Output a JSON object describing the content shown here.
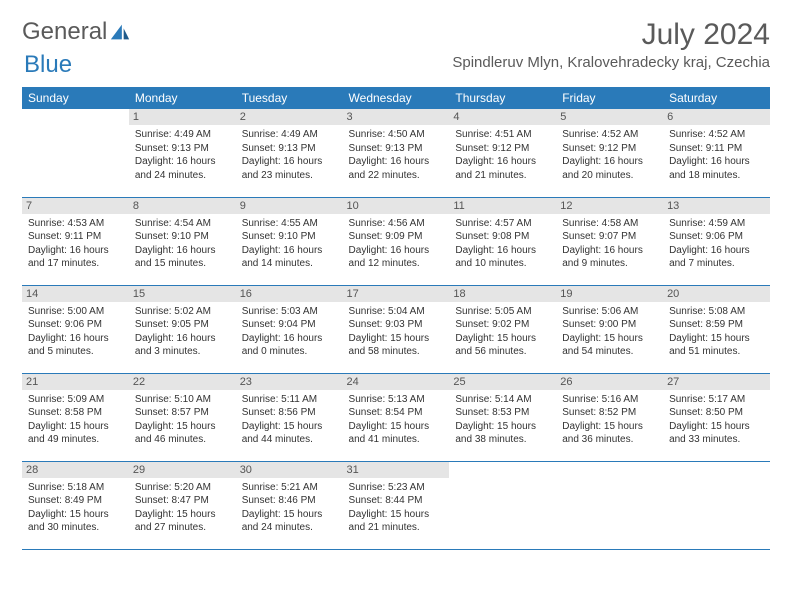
{
  "logo": {
    "text1": "General",
    "text2": "Blue"
  },
  "title": "July 2024",
  "location": "Spindleruv Mlyn, Kralovehradecky kraj, Czechia",
  "colors": {
    "brand": "#2a7ab9",
    "daynum_bg": "#e5e5e5",
    "text": "#333333",
    "muted": "#5a5a5a",
    "white": "#ffffff"
  },
  "weekdays": [
    "Sunday",
    "Monday",
    "Tuesday",
    "Wednesday",
    "Thursday",
    "Friday",
    "Saturday"
  ],
  "weeks": [
    [
      null,
      {
        "n": "1",
        "sr": "4:49 AM",
        "ss": "9:13 PM",
        "dl": "16 hours and 24 minutes."
      },
      {
        "n": "2",
        "sr": "4:49 AM",
        "ss": "9:13 PM",
        "dl": "16 hours and 23 minutes."
      },
      {
        "n": "3",
        "sr": "4:50 AM",
        "ss": "9:13 PM",
        "dl": "16 hours and 22 minutes."
      },
      {
        "n": "4",
        "sr": "4:51 AM",
        "ss": "9:12 PM",
        "dl": "16 hours and 21 minutes."
      },
      {
        "n": "5",
        "sr": "4:52 AM",
        "ss": "9:12 PM",
        "dl": "16 hours and 20 minutes."
      },
      {
        "n": "6",
        "sr": "4:52 AM",
        "ss": "9:11 PM",
        "dl": "16 hours and 18 minutes."
      }
    ],
    [
      {
        "n": "7",
        "sr": "4:53 AM",
        "ss": "9:11 PM",
        "dl": "16 hours and 17 minutes."
      },
      {
        "n": "8",
        "sr": "4:54 AM",
        "ss": "9:10 PM",
        "dl": "16 hours and 15 minutes."
      },
      {
        "n": "9",
        "sr": "4:55 AM",
        "ss": "9:10 PM",
        "dl": "16 hours and 14 minutes."
      },
      {
        "n": "10",
        "sr": "4:56 AM",
        "ss": "9:09 PM",
        "dl": "16 hours and 12 minutes."
      },
      {
        "n": "11",
        "sr": "4:57 AM",
        "ss": "9:08 PM",
        "dl": "16 hours and 10 minutes."
      },
      {
        "n": "12",
        "sr": "4:58 AM",
        "ss": "9:07 PM",
        "dl": "16 hours and 9 minutes."
      },
      {
        "n": "13",
        "sr": "4:59 AM",
        "ss": "9:06 PM",
        "dl": "16 hours and 7 minutes."
      }
    ],
    [
      {
        "n": "14",
        "sr": "5:00 AM",
        "ss": "9:06 PM",
        "dl": "16 hours and 5 minutes."
      },
      {
        "n": "15",
        "sr": "5:02 AM",
        "ss": "9:05 PM",
        "dl": "16 hours and 3 minutes."
      },
      {
        "n": "16",
        "sr": "5:03 AM",
        "ss": "9:04 PM",
        "dl": "16 hours and 0 minutes."
      },
      {
        "n": "17",
        "sr": "5:04 AM",
        "ss": "9:03 PM",
        "dl": "15 hours and 58 minutes."
      },
      {
        "n": "18",
        "sr": "5:05 AM",
        "ss": "9:02 PM",
        "dl": "15 hours and 56 minutes."
      },
      {
        "n": "19",
        "sr": "5:06 AM",
        "ss": "9:00 PM",
        "dl": "15 hours and 54 minutes."
      },
      {
        "n": "20",
        "sr": "5:08 AM",
        "ss": "8:59 PM",
        "dl": "15 hours and 51 minutes."
      }
    ],
    [
      {
        "n": "21",
        "sr": "5:09 AM",
        "ss": "8:58 PM",
        "dl": "15 hours and 49 minutes."
      },
      {
        "n": "22",
        "sr": "5:10 AM",
        "ss": "8:57 PM",
        "dl": "15 hours and 46 minutes."
      },
      {
        "n": "23",
        "sr": "5:11 AM",
        "ss": "8:56 PM",
        "dl": "15 hours and 44 minutes."
      },
      {
        "n": "24",
        "sr": "5:13 AM",
        "ss": "8:54 PM",
        "dl": "15 hours and 41 minutes."
      },
      {
        "n": "25",
        "sr": "5:14 AM",
        "ss": "8:53 PM",
        "dl": "15 hours and 38 minutes."
      },
      {
        "n": "26",
        "sr": "5:16 AM",
        "ss": "8:52 PM",
        "dl": "15 hours and 36 minutes."
      },
      {
        "n": "27",
        "sr": "5:17 AM",
        "ss": "8:50 PM",
        "dl": "15 hours and 33 minutes."
      }
    ],
    [
      {
        "n": "28",
        "sr": "5:18 AM",
        "ss": "8:49 PM",
        "dl": "15 hours and 30 minutes."
      },
      {
        "n": "29",
        "sr": "5:20 AM",
        "ss": "8:47 PM",
        "dl": "15 hours and 27 minutes."
      },
      {
        "n": "30",
        "sr": "5:21 AM",
        "ss": "8:46 PM",
        "dl": "15 hours and 24 minutes."
      },
      {
        "n": "31",
        "sr": "5:23 AM",
        "ss": "8:44 PM",
        "dl": "15 hours and 21 minutes."
      },
      null,
      null,
      null
    ]
  ],
  "labels": {
    "sunrise": "Sunrise: ",
    "sunset": "Sunset: ",
    "daylight": "Daylight: "
  }
}
